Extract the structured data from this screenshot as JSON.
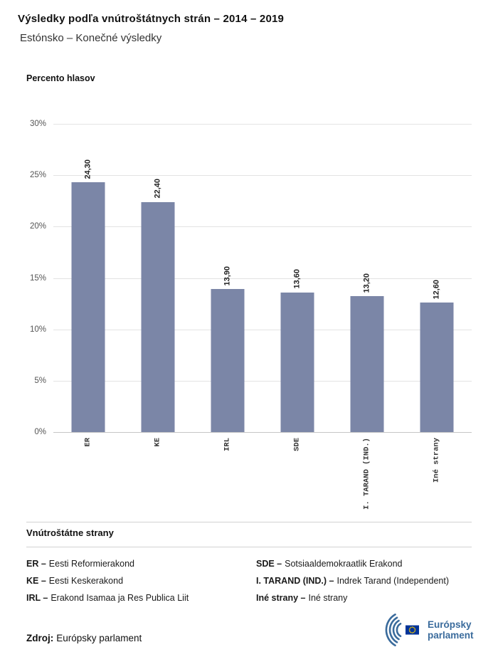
{
  "header": {
    "title": "Výsledky podľa vnútroštátnych strán – 2014 – 2019",
    "subtitle": "Estónsko – Konečné výsledky"
  },
  "chart": {
    "axis_title": "Percento hlasov"
  },
  "chart_data": {
    "type": "bar",
    "title": "Výsledky podľa vnútroštátnych strán – 2014 – 2019",
    "subtitle": "Estónsko – Konečné výsledky",
    "ylabel": "Percento hlasov",
    "xlabel": "",
    "categories": [
      "ER",
      "KE",
      "IRL",
      "SDE",
      "I. TARAND (IND.)",
      "Iné strany"
    ],
    "values": [
      24.3,
      22.4,
      13.9,
      13.6,
      13.2,
      12.6
    ],
    "value_labels": [
      "24,30",
      "22,40",
      "13,90",
      "13,60",
      "13,20",
      "12,60"
    ],
    "ylim": [
      0,
      30
    ],
    "y_ticks": [
      {
        "value": 0,
        "label": "0%"
      },
      {
        "value": 5,
        "label": "5%"
      },
      {
        "value": 10,
        "label": "10%"
      },
      {
        "value": 15,
        "label": "15%"
      },
      {
        "value": 20,
        "label": "20%"
      },
      {
        "value": 25,
        "label": "25%"
      },
      {
        "value": 30,
        "label": "30%"
      }
    ],
    "grid": true,
    "bar_color": "#7b86a7"
  },
  "legend": {
    "heading": "Vnútroštátne strany",
    "columns": [
      [
        {
          "abbr": "ER –",
          "name": "Eesti Reformierakond"
        },
        {
          "abbr": "KE –",
          "name": "Eesti Keskerakond"
        },
        {
          "abbr": "IRL –",
          "name": "Erakond Isamaa ja Res Publica Liit"
        }
      ],
      [
        {
          "abbr": "SDE –",
          "name": "Sotsiaaldemokraatlik Erakond"
        },
        {
          "abbr": "I. TARAND (IND.) –",
          "name": "Indrek Tarand (Independent)"
        },
        {
          "abbr": "Iné strany –",
          "name": "Iné strany"
        }
      ]
    ]
  },
  "footer": {
    "source_label": "Zdroj:",
    "source_value": "Európsky parlament",
    "logo": {
      "line1": "Európsky",
      "line2": "parlament",
      "color": "#3a6b9c",
      "flag_blue": "#003399",
      "flag_yellow": "#ffcc00"
    }
  }
}
